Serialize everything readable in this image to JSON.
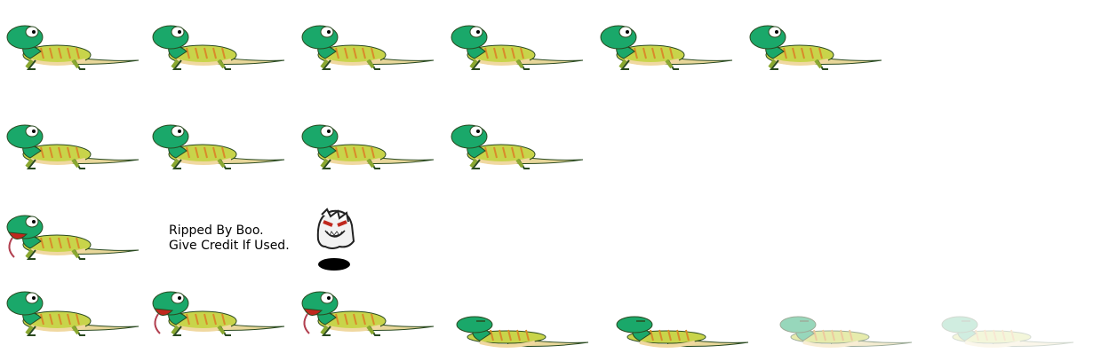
{
  "sheet": {
    "credit_line1": "Ripped By Boo.",
    "credit_line2": "Give Credit If Used.",
    "character": "gecko-lizard-sprite",
    "rows": [
      {
        "name": "idle",
        "frames": 6
      },
      {
        "name": "walk",
        "frames": 4
      },
      {
        "name": "attack-tongue",
        "frames": 1
      },
      {
        "name": "hit-and-death",
        "frames": 7
      }
    ],
    "colors": {
      "head_green": "#1aa86a",
      "body_yellow": "#c8d44a",
      "stripe_orange": "#d98a2a",
      "belly": "#f0d8a0",
      "tail": "#e8d79a",
      "mouth_red": "#c0281e",
      "outline": "#2a4a20"
    }
  }
}
